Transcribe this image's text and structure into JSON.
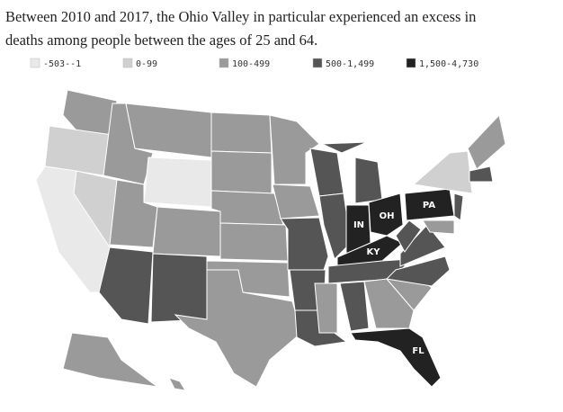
{
  "title": "Between 2010 and 2017, the Ohio Valley in particular experienced an excess in deaths among people between the ages of 25 and 64.",
  "legend": [
    {
      "label": "-503--1",
      "color": "#e9e9e9"
    },
    {
      "label": "0-99",
      "color": "#d0d0d0"
    },
    {
      "label": "100-499",
      "color": "#9a9a9a"
    },
    {
      "label": "500-1,499",
      "color": "#555555"
    },
    {
      "label": "1,500-4,730",
      "color": "#222222"
    }
  ],
  "state_labels": [
    "IN",
    "OH",
    "KY",
    "PA",
    "FL"
  ]
}
